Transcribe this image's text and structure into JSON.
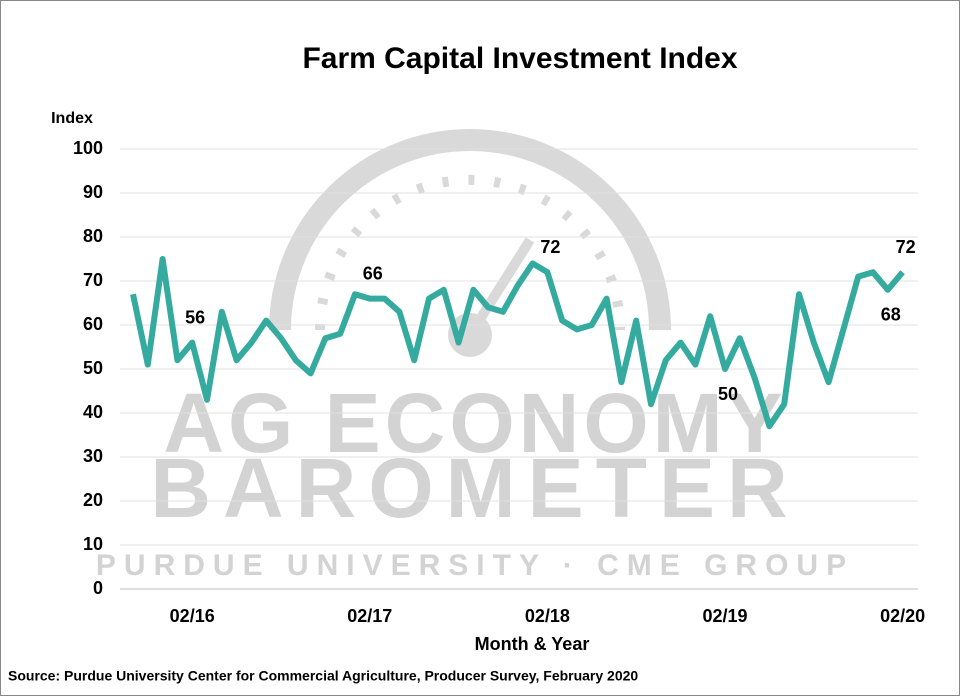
{
  "chart_data": {
    "type": "line",
    "title": "Farm Capital Investment Index",
    "y_label": "Index",
    "x_label": "Month & Year",
    "source": "Source: Purdue University Center for Commercial Agriculture, Producer Survey, February 2020",
    "watermark": [
      "AG ECONOMY",
      "BAROMETER",
      "PURDUE UNIVERSITY  ·  CME GROUP"
    ],
    "categories": [
      null,
      null,
      null,
      null,
      "02/16",
      null,
      null,
      null,
      null,
      null,
      null,
      null,
      null,
      null,
      null,
      null,
      "02/17",
      null,
      null,
      null,
      null,
      null,
      null,
      null,
      null,
      null,
      null,
      null,
      "02/18",
      null,
      null,
      null,
      null,
      null,
      null,
      null,
      null,
      null,
      null,
      null,
      "02/19",
      null,
      null,
      null,
      null,
      null,
      null,
      null,
      null,
      null,
      null,
      null,
      "02/20"
    ],
    "series": [
      {
        "name": "Farm Capital Investment Index",
        "color": "#35aba0",
        "values": [
          67,
          51,
          75,
          52,
          56,
          43,
          63,
          52,
          56,
          61,
          57,
          52,
          49,
          57,
          58,
          67,
          66,
          66,
          63,
          52,
          66,
          68,
          56,
          68,
          64,
          63,
          69,
          74,
          72,
          61,
          59,
          60,
          66,
          47,
          61,
          42,
          52,
          56,
          51,
          62,
          50,
          57,
          48,
          37,
          42,
          67,
          56,
          47,
          59,
          71,
          72,
          68,
          72
        ],
        "value_labels": [
          null,
          null,
          null,
          null,
          "56",
          null,
          null,
          null,
          null,
          null,
          null,
          null,
          null,
          null,
          null,
          null,
          "66",
          null,
          null,
          null,
          null,
          null,
          null,
          null,
          null,
          null,
          null,
          null,
          "72",
          null,
          null,
          null,
          null,
          null,
          null,
          null,
          null,
          null,
          null,
          null,
          "50",
          null,
          null,
          null,
          null,
          null,
          null,
          null,
          null,
          null,
          null,
          "68",
          "72"
        ]
      }
    ],
    "ylim": [
      0,
      100
    ],
    "yticks": [
      0,
      10,
      20,
      30,
      40,
      50,
      60,
      70,
      80,
      90,
      100
    ],
    "grid": true
  }
}
